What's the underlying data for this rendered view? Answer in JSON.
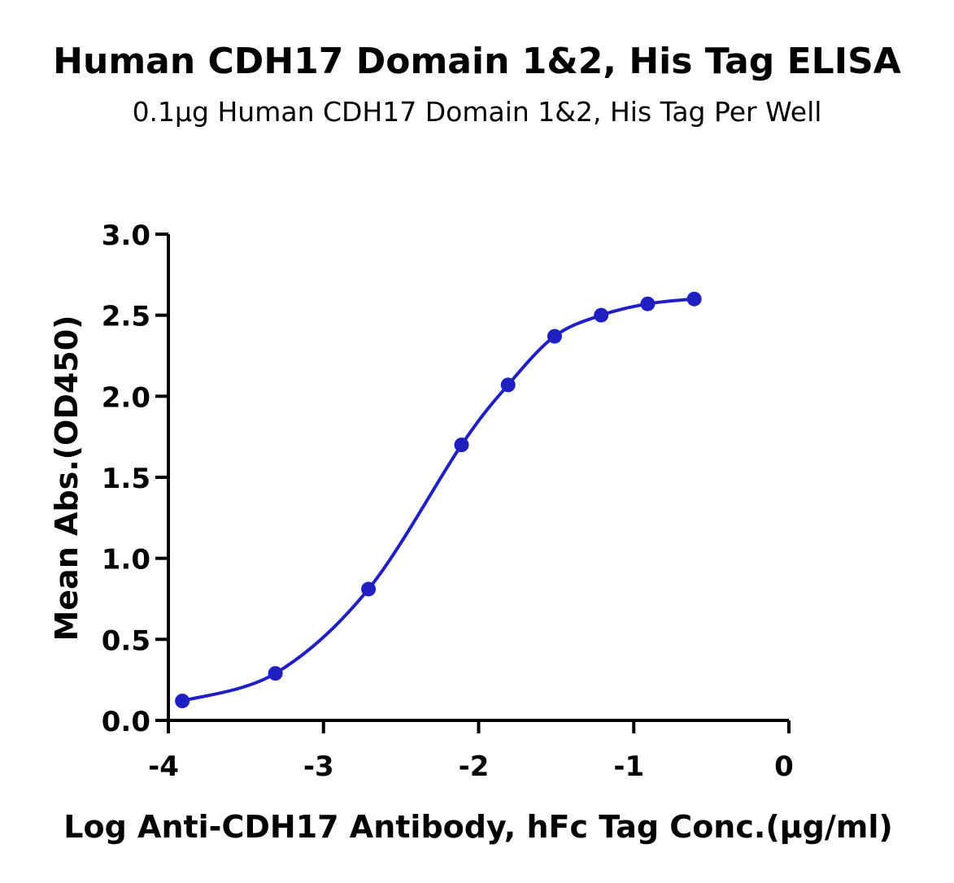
{
  "chart_data": {
    "type": "scatter",
    "title": "Human CDH17 Domain 1&2, His Tag ELISA",
    "subtitle": "0.1μg Human CDH17 Domain 1&2, His Tag Per Well",
    "xlabel": "Log Anti-CDH17 Antibody, hFc Tag Conc.(μg/ml)",
    "ylabel": "Mean Abs.(OD450)",
    "xlim": [
      -4,
      0
    ],
    "ylim": [
      0,
      3.0
    ],
    "x_ticks": [
      "-4",
      "-3",
      "-2",
      "-1",
      "0"
    ],
    "y_ticks": [
      "0.0",
      "0.5",
      "1.0",
      "1.5",
      "2.0",
      "2.5",
      "3.0"
    ],
    "grid": false,
    "series": [
      {
        "x": [
          -3.91,
          -3.31,
          -2.71,
          -2.11,
          -1.81,
          -1.51,
          -1.21,
          -0.91,
          -0.61
        ],
        "y": [
          0.12,
          0.29,
          0.81,
          1.7,
          2.07,
          2.37,
          2.5,
          2.57,
          2.6
        ],
        "color": "#1f1fc2",
        "fit_line": true
      }
    ]
  }
}
